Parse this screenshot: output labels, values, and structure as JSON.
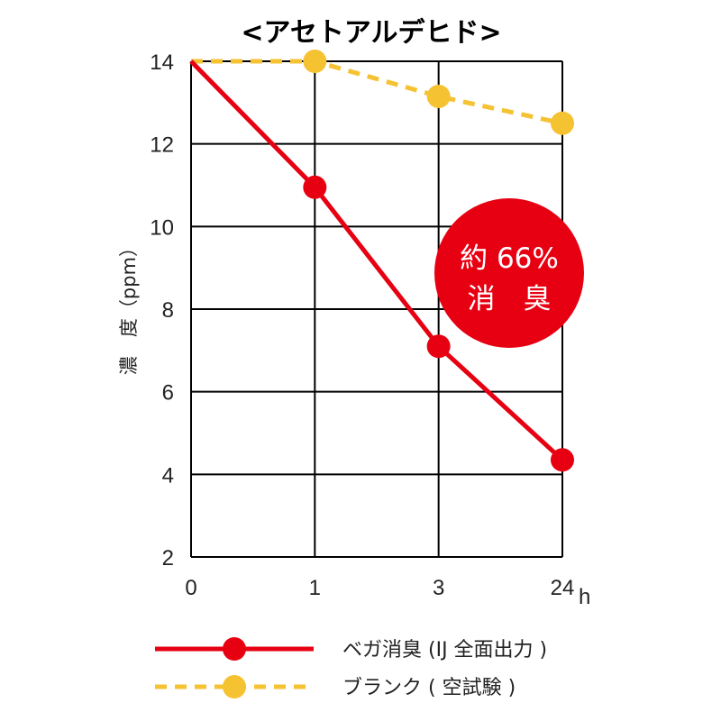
{
  "chart_data": {
    "type": "line",
    "title": "<アセトアルデヒド>",
    "ylabel": "濃　度（ppm）",
    "xunit": "h",
    "categories": [
      "0",
      "1",
      "3",
      "24"
    ],
    "yticks": [
      "14",
      "12",
      "10",
      "8",
      "6",
      "4",
      "2"
    ],
    "ylim": [
      2,
      14
    ],
    "grid": true,
    "series": [
      {
        "name": "ベガ消臭 (IJ 全面出力 )",
        "values": [
          14,
          10.95,
          7.1,
          4.35
        ],
        "color": "#e60012",
        "style": "solid",
        "first_marker": false
      },
      {
        "name": "ブランク ( 空試験 )",
        "values": [
          14,
          14,
          13.15,
          12.5
        ],
        "color": "#f5c232",
        "style": "dashed",
        "first_marker": false
      }
    ],
    "annotation": {
      "line1": "約 66%",
      "line2": "消　臭",
      "color": "#e60012"
    }
  }
}
